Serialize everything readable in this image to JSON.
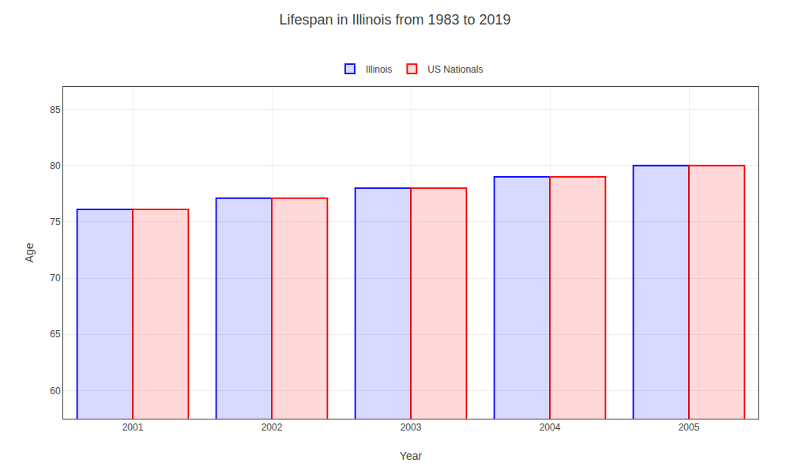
{
  "chart_data": {
    "type": "bar",
    "title": "Lifespan in Illinois from 1983 to 2019",
    "xlabel": "Year",
    "ylabel": "Age",
    "categories": [
      "2001",
      "2002",
      "2003",
      "2004",
      "2005"
    ],
    "series": [
      {
        "name": "Illinois",
        "color": "#0000ff",
        "values": [
          76.1,
          77.1,
          78.0,
          79.0,
          80.0
        ]
      },
      {
        "name": "US Nationals",
        "color": "#ff0000",
        "values": [
          76.1,
          77.1,
          78.0,
          79.0,
          80.0
        ]
      }
    ],
    "ylim": [
      57.5,
      87
    ],
    "yticks": [
      60,
      65,
      70,
      75,
      80,
      85
    ],
    "grid": true,
    "legend": "top"
  }
}
